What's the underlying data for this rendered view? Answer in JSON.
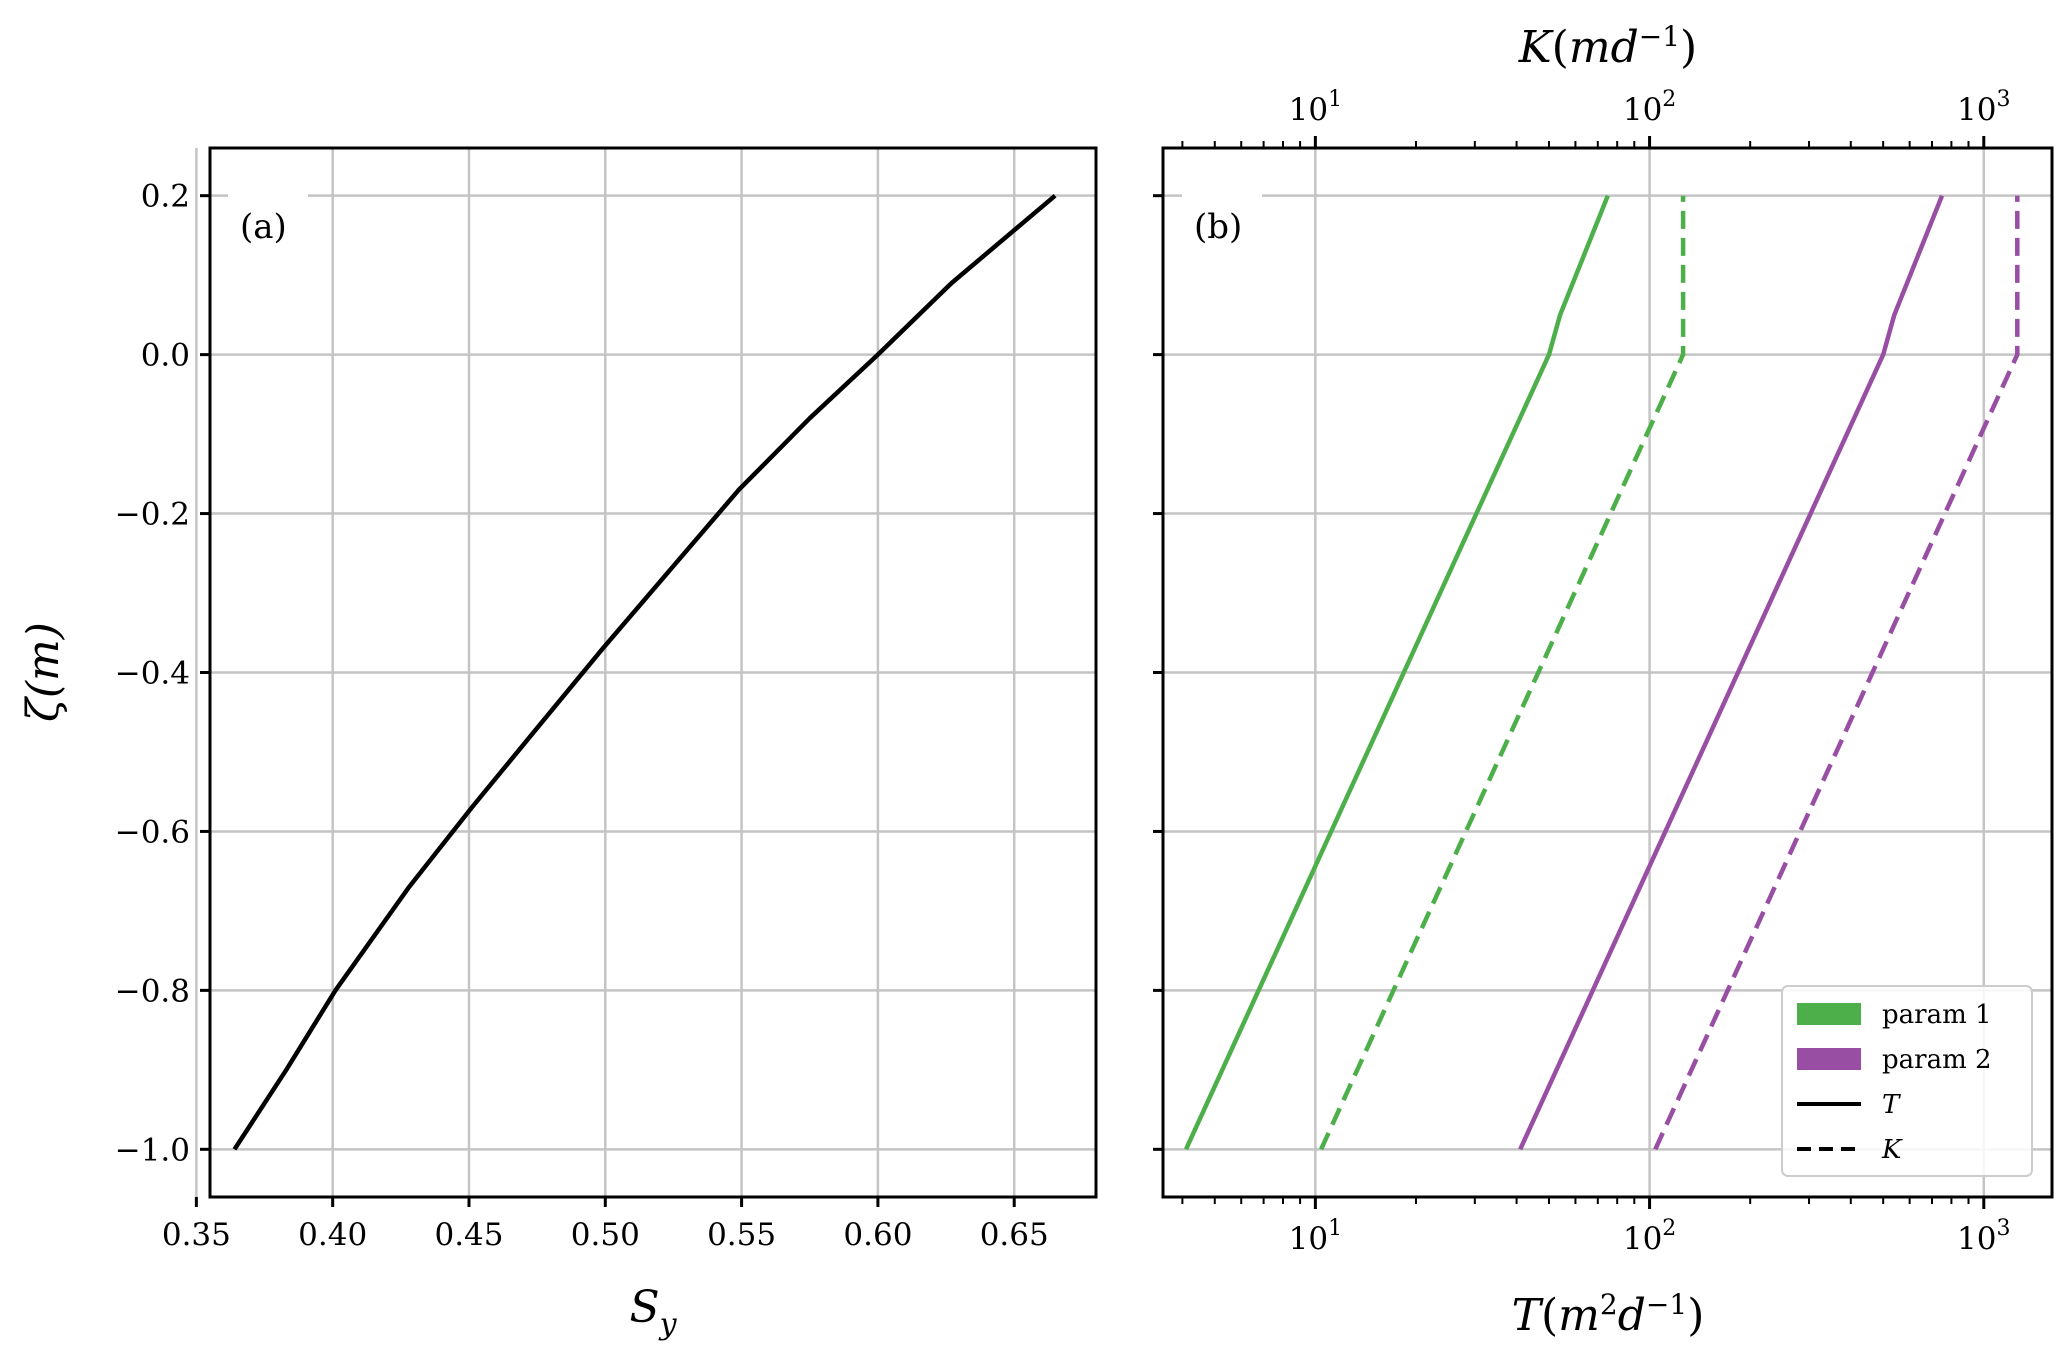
{
  "chart_data": [
    {
      "type": "line",
      "panel_label": "(a)",
      "xlabel": "S_y",
      "ylabel": "ζ(m)",
      "xlim": [
        0.355,
        0.68
      ],
      "ylim": [
        -1.06,
        0.26
      ],
      "xticks": [
        0.35,
        0.4,
        0.45,
        0.5,
        0.55,
        0.6,
        0.65
      ],
      "xtick_labels": [
        "0.35",
        "0.40",
        "0.45",
        "0.50",
        "0.55",
        "0.60",
        "0.65"
      ],
      "yticks": [
        -1.0,
        -0.8,
        -0.6,
        -0.4,
        -0.2,
        0.0,
        0.2
      ],
      "ytick_labels": [
        "−1.0",
        "−0.8",
        "−0.6",
        "−0.4",
        "−0.2",
        "0.0",
        "0.2"
      ],
      "grid": true,
      "series": [
        {
          "color": "#000000",
          "dash": "solid",
          "x": [
            0.364,
            0.383,
            0.401,
            0.428,
            0.451,
            0.475,
            0.499,
            0.524,
            0.549,
            0.575,
            0.6,
            0.627,
            0.665
          ],
          "y": [
            -1.0,
            -0.9,
            -0.8,
            -0.67,
            -0.57,
            -0.47,
            -0.37,
            -0.27,
            -0.17,
            -0.08,
            0.0,
            0.09,
            0.2
          ]
        }
      ]
    },
    {
      "type": "line",
      "panel_label": "(b)",
      "xlabel": "T(m²d⁻¹)",
      "x2label": "K(md⁻¹)",
      "xscale": "log",
      "xlim": [
        3.5,
        1600
      ],
      "ylim": [
        -1.06,
        0.26
      ],
      "xticks": [
        10,
        100,
        1000
      ],
      "xtick_labels": [
        "10",
        "10",
        "10"
      ],
      "xtick_exponents": [
        "1",
        "2",
        "3"
      ],
      "yticks": [
        -1.0,
        -0.8,
        -0.6,
        -0.4,
        -0.2,
        0.0,
        0.2
      ],
      "grid": true,
      "legend_position": "lower-right",
      "legend": [
        {
          "label": "param 1",
          "color": "#4daf4a",
          "kind": "patch"
        },
        {
          "label": "param 2",
          "color": "#984ea3",
          "kind": "patch"
        },
        {
          "label": "T",
          "color": "#000000",
          "kind": "solid"
        },
        {
          "label": "K",
          "color": "#000000",
          "kind": "dashed"
        }
      ],
      "series": [
        {
          "color": "#4daf4a",
          "dash": "solid",
          "x": [
            4.1,
            50,
            54,
            75
          ],
          "y": [
            -1.0,
            0.0,
            0.05,
            0.2
          ]
        },
        {
          "color": "#4daf4a",
          "dash": "dashed",
          "x": [
            10.4,
            126,
            126
          ],
          "y": [
            -1.0,
            0.0,
            0.2
          ]
        },
        {
          "color": "#984ea3",
          "dash": "solid",
          "x": [
            41,
            500,
            540,
            750
          ],
          "y": [
            -1.0,
            0.0,
            0.05,
            0.2
          ]
        },
        {
          "color": "#984ea3",
          "dash": "dashed",
          "x": [
            104,
            1260,
            1260
          ],
          "y": [
            -1.0,
            0.0,
            0.2
          ]
        }
      ]
    }
  ]
}
